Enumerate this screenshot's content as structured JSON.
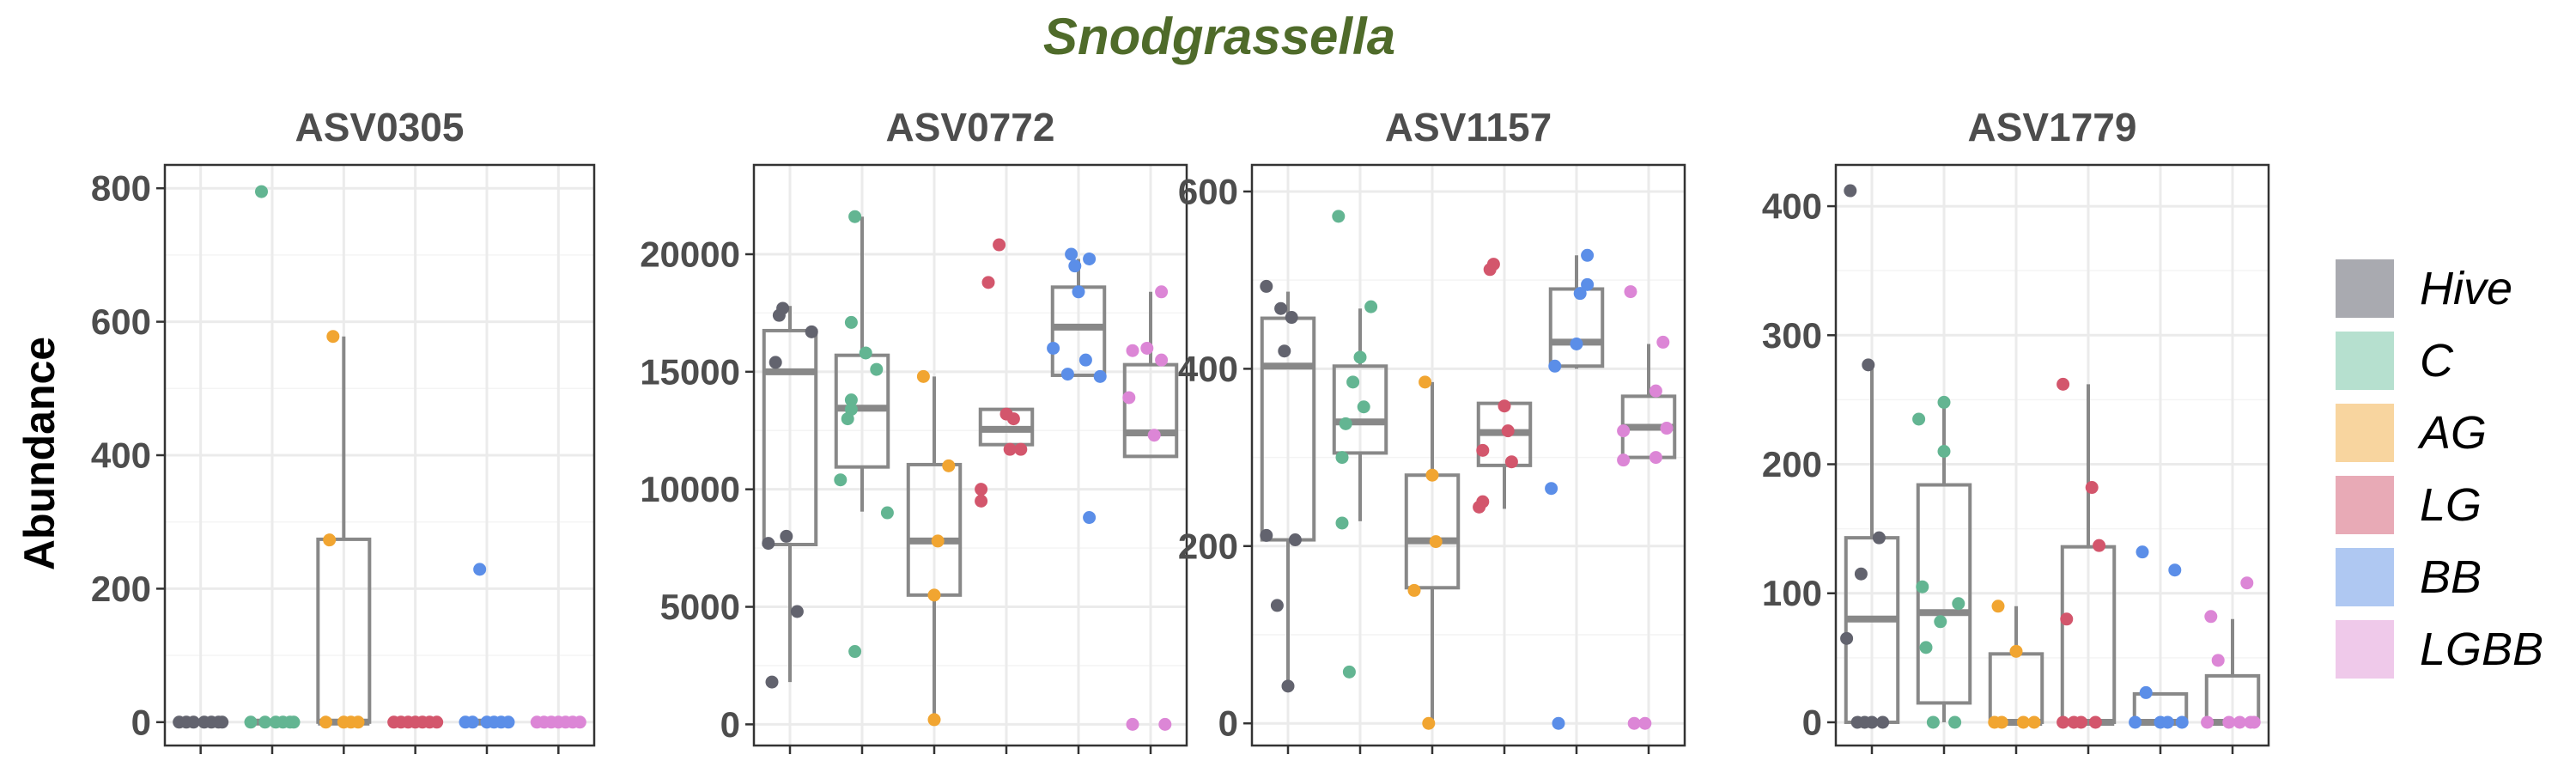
{
  "title": "Snodgrassella",
  "ylabel": "Abundance",
  "colors": {
    "title": "#4f6b2a",
    "groups": [
      "#62636e",
      "#63b592",
      "#f1a531",
      "#d3566c",
      "#5b8ee8",
      "#dc86d6"
    ],
    "legend": [
      "#a9aab0",
      "#b6e0cf",
      "#f8d59f",
      "#e8aab6",
      "#afc8f2",
      "#efc9ea"
    ],
    "box": "#888888",
    "grid": "#ebebeb",
    "tick_text": "#4d4d4d"
  },
  "legend": {
    "position": "right",
    "items": [
      "Hive",
      "C",
      "AG",
      "LG",
      "BB",
      "LGBB"
    ]
  },
  "chart_data": [
    {
      "type": "box",
      "title": "ASV0305",
      "xlabel": "",
      "ylabel": "Abundance",
      "groups": [
        "Hive",
        "C",
        "AG",
        "LG",
        "BB",
        "LGBB"
      ],
      "ylim": [
        -35,
        835
      ],
      "yticks": [
        0,
        200,
        400,
        600,
        800
      ],
      "ytick_labels": [
        "0",
        "200",
        "400",
        "600",
        "800"
      ],
      "boxes": [
        {
          "q1": 0,
          "median": 0,
          "q3": 0,
          "whisker_low": 0,
          "whisker_high": 0
        },
        {
          "q1": 0,
          "median": 0,
          "q3": 0,
          "whisker_low": 0,
          "whisker_high": 0
        },
        {
          "q1": 0,
          "median": 0,
          "q3": 274,
          "whisker_low": 0,
          "whisker_high": 578
        },
        {
          "q1": 0,
          "median": 0,
          "q3": 0,
          "whisker_low": 0,
          "whisker_high": 0
        },
        {
          "q1": 0,
          "median": 0,
          "q3": 0,
          "whisker_low": 0,
          "whisker_high": 0
        },
        {
          "q1": 0,
          "median": 0,
          "q3": 0,
          "whisker_low": 0,
          "whisker_high": 0
        }
      ],
      "points": [
        [
          [
            -0.3,
            0
          ],
          [
            -0.2,
            0
          ],
          [
            -0.1,
            0
          ],
          [
            0.05,
            0
          ],
          [
            0.15,
            0
          ],
          [
            0.25,
            0
          ],
          [
            0.3,
            0
          ]
        ],
        [
          [
            -0.3,
            0
          ],
          [
            -0.15,
            795
          ],
          [
            -0.1,
            0
          ],
          [
            0.05,
            0
          ],
          [
            0.15,
            0
          ],
          [
            0.25,
            0
          ],
          [
            0.3,
            0
          ]
        ],
        [
          [
            -0.25,
            0
          ],
          [
            -0.2,
            273
          ],
          [
            -0.15,
            578
          ],
          [
            0,
            0
          ],
          [
            0.1,
            0
          ],
          [
            0.2,
            0
          ]
        ],
        [
          [
            -0.3,
            0
          ],
          [
            -0.2,
            0
          ],
          [
            -0.1,
            0
          ],
          [
            0,
            0
          ],
          [
            0.1,
            0
          ],
          [
            0.2,
            0
          ],
          [
            0.3,
            0
          ]
        ],
        [
          [
            -0.3,
            0
          ],
          [
            -0.2,
            0
          ],
          [
            -0.1,
            229
          ],
          [
            0,
            0
          ],
          [
            0.1,
            0
          ],
          [
            0.2,
            0
          ],
          [
            0.3,
            0
          ]
        ],
        [
          [
            -0.3,
            0
          ],
          [
            -0.2,
            0
          ],
          [
            -0.1,
            0
          ],
          [
            0,
            0
          ],
          [
            0.1,
            0
          ],
          [
            0.2,
            0
          ],
          [
            0.3,
            0
          ]
        ]
      ]
    },
    {
      "type": "box",
      "title": "ASV0772",
      "xlabel": "",
      "ylabel": "",
      "groups": [
        "Hive",
        "C",
        "AG",
        "LG",
        "BB",
        "LGBB"
      ],
      "ylim": [
        -900,
        23800
      ],
      "yticks": [
        0,
        5000,
        10000,
        15000,
        20000
      ],
      "ytick_labels": [
        "0",
        "5000",
        "10000",
        "15000",
        "20000"
      ],
      "boxes": [
        {
          "q1": 7650,
          "median": 15000,
          "q3": 16750,
          "whisker_low": 1800,
          "whisker_high": 17800
        },
        {
          "q1": 10950,
          "median": 13450,
          "q3": 15700,
          "whisker_low": 9050,
          "whisker_high": 21600
        },
        {
          "q1": 5500,
          "median": 7800,
          "q3": 11050,
          "whisker_low": 200,
          "whisker_high": 14800
        },
        {
          "q1": 11900,
          "median": 12550,
          "q3": 13400,
          "whisker_low": 11700,
          "whisker_high": 13400
        },
        {
          "q1": 14850,
          "median": 16900,
          "q3": 18600,
          "whisker_low": 14850,
          "whisker_high": 19800
        },
        {
          "q1": 11400,
          "median": 12400,
          "q3": 15300,
          "whisker_low": 11400,
          "whisker_high": 18400
        }
      ],
      "points": [
        [
          [
            -0.3,
            7700
          ],
          [
            -0.25,
            1800
          ],
          [
            -0.2,
            15400
          ],
          [
            -0.15,
            17400
          ],
          [
            -0.1,
            17700
          ],
          [
            -0.05,
            8000
          ],
          [
            0.1,
            4800
          ],
          [
            0.3,
            16700
          ]
        ],
        [
          [
            -0.3,
            10400
          ],
          [
            -0.2,
            13000
          ],
          [
            -0.15,
            13400
          ],
          [
            -0.15,
            13800
          ],
          [
            -0.15,
            17100
          ],
          [
            -0.1,
            21600
          ],
          [
            -0.1,
            3100
          ],
          [
            0.05,
            15800
          ],
          [
            0.2,
            15100
          ],
          [
            0.35,
            9000
          ]
        ],
        [
          [
            -0.15,
            14800
          ],
          [
            0,
            200
          ],
          [
            0,
            5500
          ],
          [
            0.05,
            7800
          ],
          [
            0.2,
            11000
          ]
        ],
        [
          [
            -0.35,
            9500
          ],
          [
            -0.35,
            10000
          ],
          [
            -0.25,
            18800
          ],
          [
            -0.1,
            20400
          ],
          [
            0,
            13200
          ],
          [
            0.05,
            11700
          ],
          [
            0.1,
            13000
          ],
          [
            0.2,
            11700
          ]
        ],
        [
          [
            -0.35,
            16000
          ],
          [
            -0.15,
            14900
          ],
          [
            -0.1,
            20000
          ],
          [
            -0.05,
            19500
          ],
          [
            0,
            18400
          ],
          [
            0.1,
            15500
          ],
          [
            0.15,
            8800
          ],
          [
            0.15,
            19800
          ],
          [
            0.3,
            14800
          ]
        ],
        [
          [
            -0.3,
            13900
          ],
          [
            -0.25,
            15900
          ],
          [
            -0.25,
            0
          ],
          [
            -0.05,
            16000
          ],
          [
            0.05,
            12300
          ],
          [
            0.15,
            15500
          ],
          [
            0.15,
            18400
          ],
          [
            0.2,
            0
          ]
        ]
      ]
    },
    {
      "type": "box",
      "title": "ASV1157",
      "xlabel": "",
      "ylabel": "",
      "groups": [
        "Hive",
        "C",
        "AG",
        "LG",
        "BB",
        "LGBB"
      ],
      "ylim": [
        -25,
        630
      ],
      "yticks": [
        0,
        200,
        400,
        600
      ],
      "ytick_labels": [
        "0",
        "200",
        "400",
        "600"
      ],
      "boxes": [
        {
          "q1": 207,
          "median": 403,
          "q3": 457,
          "whisker_low": 42,
          "whisker_high": 487
        },
        {
          "q1": 305,
          "median": 340,
          "q3": 403,
          "whisker_low": 228,
          "whisker_high": 468
        },
        {
          "q1": 153,
          "median": 206,
          "q3": 280,
          "whisker_low": 2,
          "whisker_high": 385
        },
        {
          "q1": 291,
          "median": 328,
          "q3": 361,
          "whisker_low": 242,
          "whisker_high": 361
        },
        {
          "q1": 403,
          "median": 430,
          "q3": 490,
          "whisker_low": 400,
          "whisker_high": 528
        },
        {
          "q1": 300,
          "median": 334,
          "q3": 369,
          "whisker_low": 300,
          "whisker_high": 428
        }
      ],
      "points": [
        [
          [
            -0.3,
            212
          ],
          [
            -0.3,
            493
          ],
          [
            -0.15,
            133
          ],
          [
            -0.1,
            468
          ],
          [
            -0.05,
            420
          ],
          [
            0,
            42
          ],
          [
            0.05,
            458
          ],
          [
            0.1,
            207
          ]
        ],
        [
          [
            -0.3,
            572
          ],
          [
            -0.25,
            226
          ],
          [
            -0.25,
            300
          ],
          [
            -0.2,
            338
          ],
          [
            -0.15,
            58
          ],
          [
            -0.1,
            385
          ],
          [
            0,
            413
          ],
          [
            0.05,
            357
          ],
          [
            0.15,
            470
          ]
        ],
        [
          [
            -0.25,
            150
          ],
          [
            -0.1,
            385
          ],
          [
            -0.05,
            0
          ],
          [
            0,
            280
          ],
          [
            0.05,
            205
          ]
        ],
        [
          [
            -0.35,
            244
          ],
          [
            -0.3,
            250
          ],
          [
            -0.3,
            308
          ],
          [
            -0.2,
            512
          ],
          [
            -0.15,
            518
          ],
          [
            0,
            358
          ],
          [
            0.05,
            330
          ],
          [
            0.1,
            295
          ]
        ],
        [
          [
            -0.35,
            265
          ],
          [
            -0.3,
            403
          ],
          [
            -0.25,
            0
          ],
          [
            0,
            428
          ],
          [
            0.05,
            485
          ],
          [
            0.15,
            528
          ],
          [
            0.15,
            495
          ]
        ],
        [
          [
            -0.35,
            297
          ],
          [
            -0.35,
            330
          ],
          [
            -0.25,
            487
          ],
          [
            -0.2,
            0
          ],
          [
            -0.05,
            0
          ],
          [
            0.1,
            375
          ],
          [
            0.1,
            300
          ],
          [
            0.2,
            430
          ],
          [
            0.25,
            333
          ]
        ]
      ]
    },
    {
      "type": "box",
      "title": "ASV1779",
      "xlabel": "",
      "ylabel": "",
      "groups": [
        "Hive",
        "C",
        "AG",
        "LG",
        "BB",
        "LGBB"
      ],
      "ylim": [
        -18,
        432
      ],
      "yticks": [
        0,
        100,
        200,
        300,
        400
      ],
      "ytick_labels": [
        "0",
        "100",
        "200",
        "300",
        "400"
      ],
      "boxes": [
        {
          "q1": 0,
          "median": 80,
          "q3": 143,
          "whisker_low": 0,
          "whisker_high": 277
        },
        {
          "q1": 15,
          "median": 85,
          "q3": 184,
          "whisker_low": 0,
          "whisker_high": 248
        },
        {
          "q1": 0,
          "median": 0,
          "q3": 53,
          "whisker_low": 0,
          "whisker_high": 90
        },
        {
          "q1": 0,
          "median": 0,
          "q3": 136,
          "whisker_low": 0,
          "whisker_high": 262
        },
        {
          "q1": 0,
          "median": 0,
          "q3": 22,
          "whisker_low": 0,
          "whisker_high": 22
        },
        {
          "q1": 0,
          "median": 0,
          "q3": 36,
          "whisker_low": 0,
          "whisker_high": 80
        }
      ],
      "points": [
        [
          [
            -0.35,
            65
          ],
          [
            -0.3,
            412
          ],
          [
            -0.2,
            0
          ],
          [
            -0.15,
            115
          ],
          [
            -0.1,
            0
          ],
          [
            -0.05,
            277
          ],
          [
            0,
            0
          ],
          [
            0.1,
            143
          ],
          [
            0.15,
            0
          ]
        ],
        [
          [
            -0.35,
            235
          ],
          [
            -0.3,
            105
          ],
          [
            -0.25,
            58
          ],
          [
            -0.15,
            0
          ],
          [
            -0.05,
            78
          ],
          [
            0,
            210
          ],
          [
            0,
            248
          ],
          [
            0.15,
            0
          ],
          [
            0.2,
            92
          ]
        ],
        [
          [
            -0.3,
            0
          ],
          [
            -0.25,
            90
          ],
          [
            -0.2,
            0
          ],
          [
            0,
            55
          ],
          [
            0.1,
            0
          ],
          [
            0.25,
            0
          ]
        ],
        [
          [
            -0.35,
            262
          ],
          [
            -0.35,
            0
          ],
          [
            -0.3,
            80
          ],
          [
            -0.2,
            0
          ],
          [
            -0.1,
            0
          ],
          [
            0.05,
            182
          ],
          [
            0.1,
            0
          ],
          [
            0.15,
            137
          ]
        ],
        [
          [
            -0.35,
            0
          ],
          [
            -0.25,
            132
          ],
          [
            -0.2,
            23
          ],
          [
            0,
            0
          ],
          [
            0.1,
            0
          ],
          [
            0.2,
            118
          ],
          [
            0.3,
            0
          ]
        ],
        [
          [
            -0.35,
            0
          ],
          [
            -0.3,
            82
          ],
          [
            -0.2,
            48
          ],
          [
            -0.05,
            0
          ],
          [
            0.1,
            0
          ],
          [
            0.2,
            108
          ],
          [
            0.25,
            0
          ],
          [
            0.3,
            0
          ]
        ]
      ]
    }
  ]
}
